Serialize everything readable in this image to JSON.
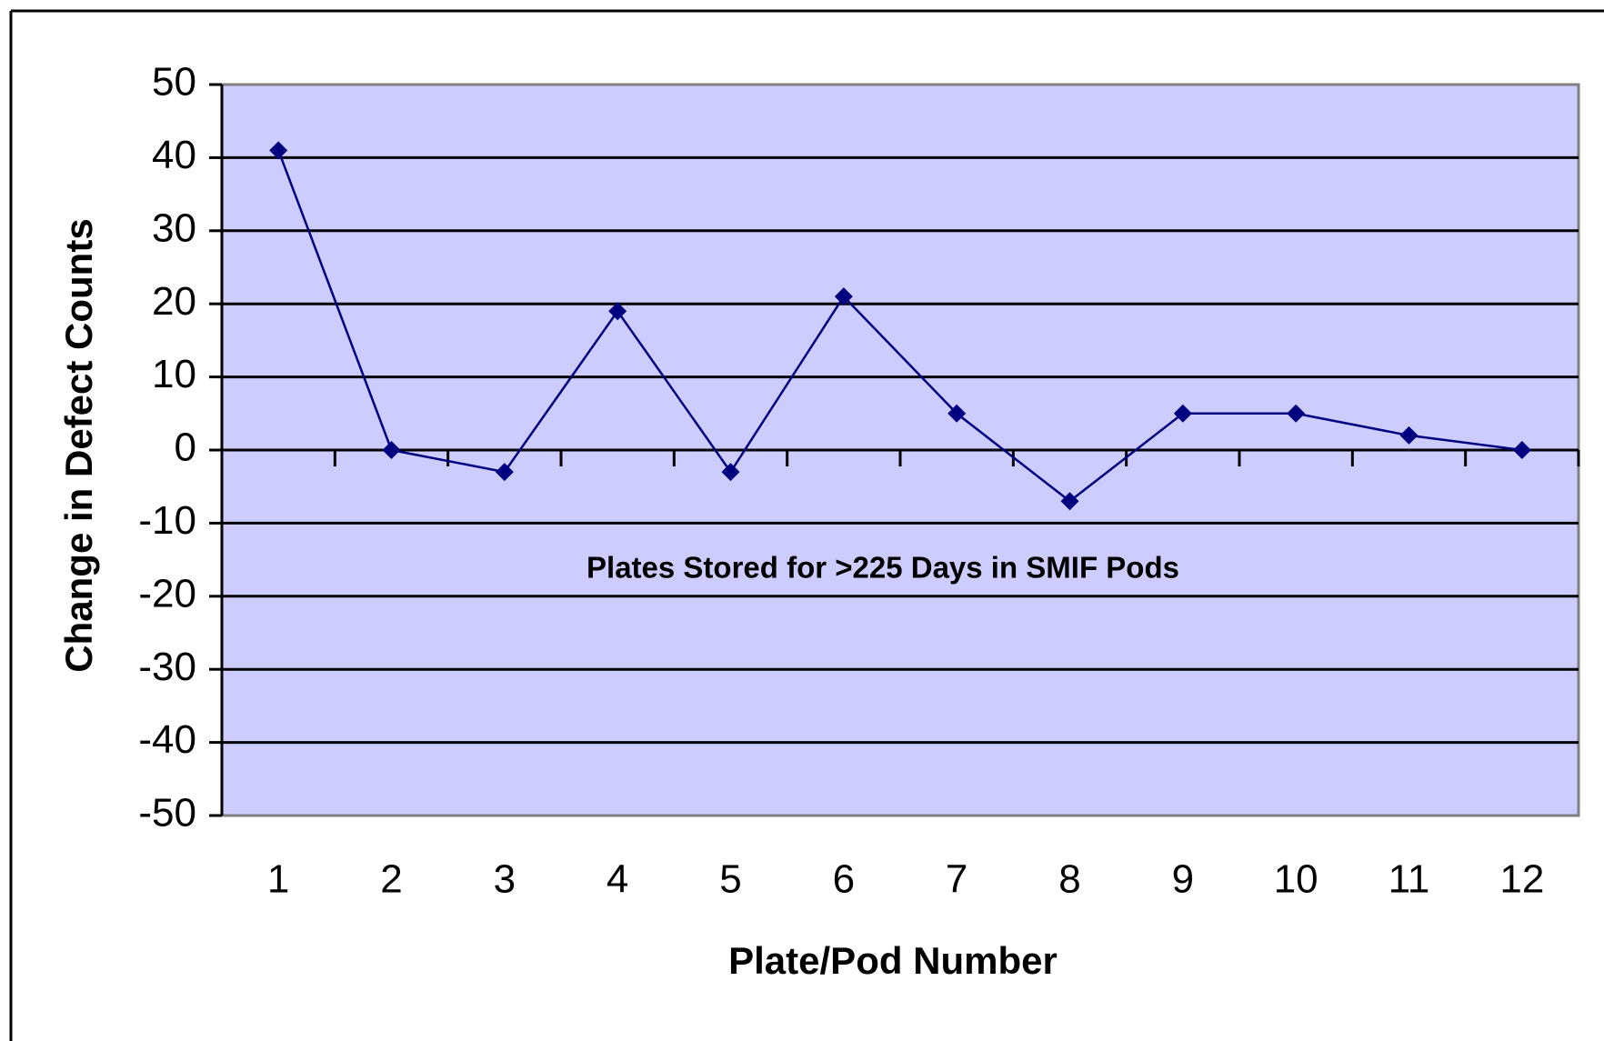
{
  "chart_data": {
    "type": "line",
    "xlabel": "Plate/Pod Number",
    "ylabel": "Change in Defect Counts",
    "annotation": "Plates Stored for >225 Days in SMIF Pods",
    "categories": [
      "1",
      "2",
      "3",
      "4",
      "5",
      "6",
      "7",
      "8",
      "9",
      "10",
      "11",
      "12"
    ],
    "values": [
      41,
      0,
      -3,
      19,
      -3,
      21,
      5,
      -7,
      5,
      5,
      2,
      0
    ],
    "color": "#000080",
    "plot_background": "#ccccff",
    "ylim": [
      -50,
      50
    ],
    "yticks": [
      -50,
      -40,
      -30,
      -20,
      -10,
      0,
      10,
      20,
      30,
      40,
      50
    ],
    "grid": true
  }
}
